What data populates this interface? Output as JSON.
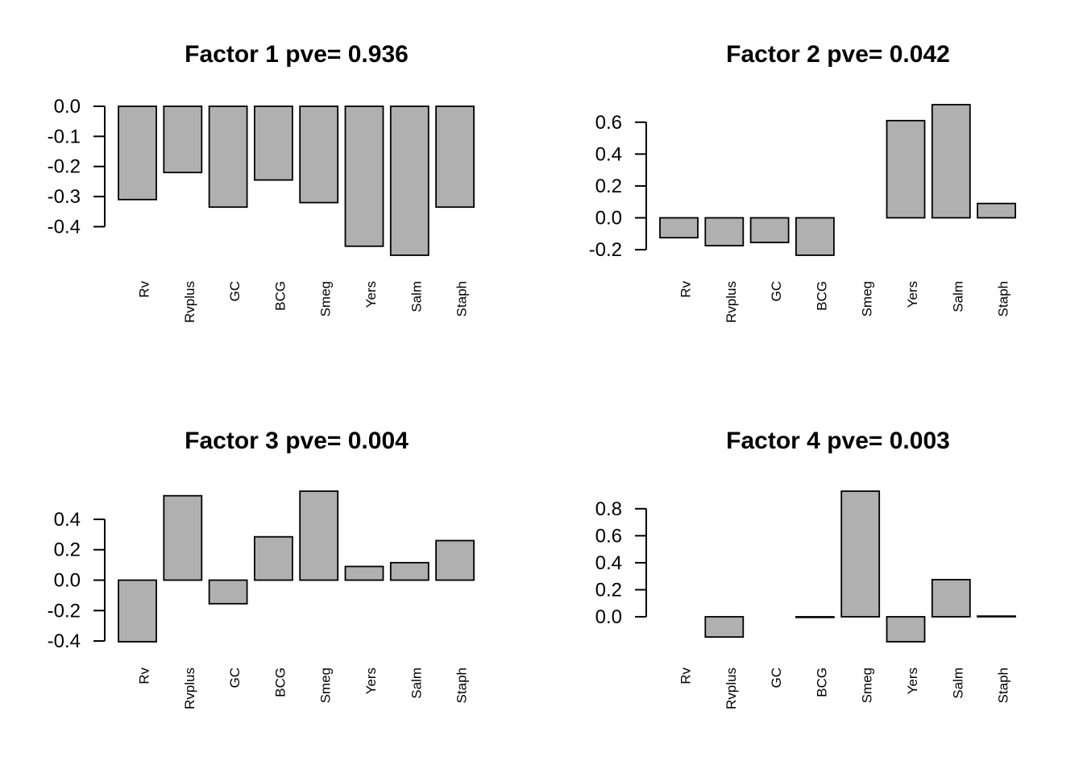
{
  "bar_fill": "#b0b0b0",
  "chart_data": [
    {
      "type": "bar",
      "title": "Factor 1 pve= 0.936",
      "categories": [
        "Rv",
        "Rvplus",
        "GC",
        "BCG",
        "Smeg",
        "Yers",
        "Salm",
        "Staph"
      ],
      "values": [
        -0.31,
        -0.22,
        -0.335,
        -0.245,
        -0.32,
        -0.465,
        -0.495,
        -0.335
      ],
      "yticks": [
        0.0,
        -0.1,
        -0.2,
        -0.3,
        -0.4
      ],
      "ytick_labels": [
        "0.0",
        "-0.1",
        "-0.2",
        "-0.3",
        "-0.4"
      ],
      "ylim": [
        -0.495,
        0.0
      ],
      "xlabel": "",
      "ylabel": "",
      "grid": false
    },
    {
      "type": "bar",
      "title": "Factor 2 pve= 0.042",
      "categories": [
        "Rv",
        "Rvplus",
        "GC",
        "BCG",
        "Smeg",
        "Yers",
        "Salm",
        "Staph"
      ],
      "values": [
        -0.125,
        -0.175,
        -0.155,
        -0.235,
        0.0,
        0.61,
        0.71,
        0.09
      ],
      "yticks": [
        0.6,
        0.4,
        0.2,
        0.0,
        -0.2
      ],
      "ytick_labels": [
        "0.6",
        "0.4",
        "0.2",
        "0.0",
        "-0.2"
      ],
      "ylim": [
        -0.235,
        0.71
      ],
      "xlabel": "",
      "ylabel": "",
      "grid": false
    },
    {
      "type": "bar",
      "title": "Factor 3 pve= 0.004",
      "categories": [
        "Rv",
        "Rvplus",
        "GC",
        "BCG",
        "Smeg",
        "Yers",
        "Salm",
        "Staph"
      ],
      "values": [
        -0.405,
        0.555,
        -0.155,
        0.285,
        0.585,
        0.09,
        0.115,
        0.26
      ],
      "yticks": [
        0.4,
        0.2,
        0.0,
        -0.2,
        -0.4
      ],
      "ytick_labels": [
        "0.4",
        "0.2",
        "0.0",
        "-0.2",
        "-0.4"
      ],
      "ylim": [
        -0.405,
        0.585
      ],
      "xlabel": "",
      "ylabel": "",
      "grid": false
    },
    {
      "type": "bar",
      "title": "Factor 4 pve= 0.003",
      "categories": [
        "Rv",
        "Rvplus",
        "GC",
        "BCG",
        "Smeg",
        "Yers",
        "Salm",
        "Staph"
      ],
      "values": [
        0.0,
        -0.15,
        0.0,
        -0.005,
        0.93,
        -0.185,
        0.275,
        0.005
      ],
      "yticks": [
        0.8,
        0.6,
        0.4,
        0.2,
        0.0
      ],
      "ytick_labels": [
        "0.8",
        "0.6",
        "0.4",
        "0.2",
        "0.0"
      ],
      "ylim": [
        -0.185,
        0.93
      ],
      "xlabel": "",
      "ylabel": "",
      "grid": false
    }
  ]
}
